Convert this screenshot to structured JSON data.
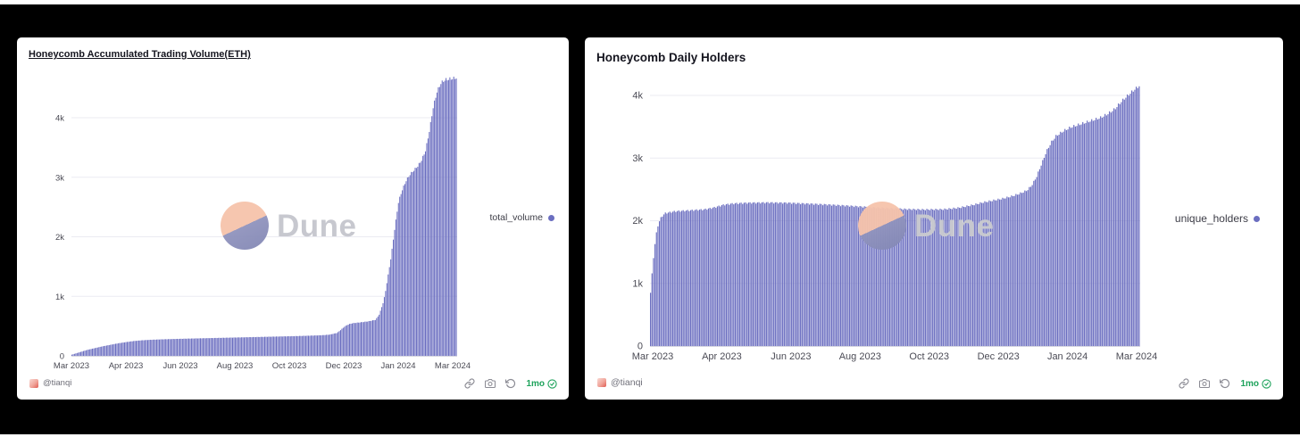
{
  "page": {
    "background": "#000000",
    "page_strip_color": "#ffffff"
  },
  "panels": [
    {
      "author": "@tianqi",
      "watermark": "Dune",
      "freshness": "1mo",
      "toolbar_icons": [
        "embed-link",
        "screenshot-camera",
        "refresh-history",
        "freshness-check"
      ]
    },
    {
      "author": "@tianqi",
      "watermark": "Dune",
      "freshness": "1mo",
      "toolbar_icons": [
        "embed-link",
        "screenshot-camera",
        "refresh-history",
        "freshness-check"
      ]
    }
  ],
  "chart_data": [
    {
      "type": "bar",
      "title": "Honeycomb Accumulated Trading Volume(ETH)",
      "xlabel": "",
      "ylabel": "",
      "x_tick_labels": [
        "Mar 2023",
        "Apr 2023",
        "Jun 2023",
        "Aug 2023",
        "Oct 2023",
        "Dec 2023",
        "Jan 2024",
        "Mar 2024"
      ],
      "y_ticks": [
        {
          "label": "0",
          "value": 0
        },
        {
          "label": "1k",
          "value": 1000
        },
        {
          "label": "2k",
          "value": 2000
        },
        {
          "label": "3k",
          "value": 3000
        },
        {
          "label": "4k",
          "value": 4000
        }
      ],
      "ylim": [
        0,
        4700
      ],
      "grid": "horizontal",
      "legend_position": "right",
      "points_format": "[position 0-1 across Mar 2023 to Mar 2024, accumulated volume in ETH]",
      "series": [
        {
          "name": "total_volume",
          "color": "#6b6ec0",
          "unit": "ETH",
          "points": [
            [
              0,
              20
            ],
            [
              0.02,
              60
            ],
            [
              0.04,
              100
            ],
            [
              0.06,
              130
            ],
            [
              0.08,
              160
            ],
            [
              0.1,
              185
            ],
            [
              0.12,
              210
            ],
            [
              0.14,
              230
            ],
            [
              0.16,
              248
            ],
            [
              0.18,
              260
            ],
            [
              0.2,
              268
            ],
            [
              0.23,
              276
            ],
            [
              0.26,
              282
            ],
            [
              0.3,
              289
            ],
            [
              0.34,
              295
            ],
            [
              0.38,
              301
            ],
            [
              0.42,
              307
            ],
            [
              0.46,
              313
            ],
            [
              0.5,
              319
            ],
            [
              0.54,
              325
            ],
            [
              0.58,
              331
            ],
            [
              0.62,
              339
            ],
            [
              0.65,
              346
            ],
            [
              0.67,
              356
            ],
            [
              0.69,
              385
            ],
            [
              0.7,
              440
            ],
            [
              0.71,
              495
            ],
            [
              0.72,
              530
            ],
            [
              0.73,
              548
            ],
            [
              0.75,
              562
            ],
            [
              0.77,
              578
            ],
            [
              0.79,
              605
            ],
            [
              0.8,
              700
            ],
            [
              0.81,
              900
            ],
            [
              0.815,
              1050
            ],
            [
              0.82,
              1250
            ],
            [
              0.83,
              1650
            ],
            [
              0.84,
              2150
            ],
            [
              0.85,
              2600
            ],
            [
              0.86,
              2800
            ],
            [
              0.87,
              2950
            ],
            [
              0.88,
              3050
            ],
            [
              0.89,
              3120
            ],
            [
              0.9,
              3190
            ],
            [
              0.91,
              3290
            ],
            [
              0.92,
              3450
            ],
            [
              0.93,
              3780
            ],
            [
              0.94,
              4180
            ],
            [
              0.95,
              4440
            ],
            [
              0.96,
              4580
            ],
            [
              0.97,
              4635
            ],
            [
              1,
              4670
            ]
          ]
        }
      ]
    },
    {
      "type": "bar",
      "title": "Honeycomb Daily Holders",
      "xlabel": "",
      "ylabel": "",
      "x_tick_labels": [
        "Mar 2023",
        "Apr 2023",
        "Jun 2023",
        "Aug 2023",
        "Oct 2023",
        "Dec 2023",
        "Jan 2024",
        "Mar 2024"
      ],
      "y_ticks": [
        {
          "label": "0",
          "value": 0
        },
        {
          "label": "1k",
          "value": 1000
        },
        {
          "label": "2k",
          "value": 2000
        },
        {
          "label": "3k",
          "value": 3000
        },
        {
          "label": "4k",
          "value": 4000
        }
      ],
      "ylim": [
        0,
        4350
      ],
      "grid": "horizontal",
      "legend_position": "right",
      "points_format": "[position 0-1 across Mar 2023 to Mar 2024, unique holders count]",
      "series": [
        {
          "name": "unique_holders",
          "color": "#6b6ec0",
          "unit": "holders",
          "points": [
            [
              0,
              850
            ],
            [
              0.004,
              1250
            ],
            [
              0.008,
              1560
            ],
            [
              0.012,
              1800
            ],
            [
              0.016,
              1950
            ],
            [
              0.022,
              2060
            ],
            [
              0.03,
              2120
            ],
            [
              0.05,
              2150
            ],
            [
              0.08,
              2165
            ],
            [
              0.11,
              2180
            ],
            [
              0.13,
              2210
            ],
            [
              0.15,
              2255
            ],
            [
              0.17,
              2275
            ],
            [
              0.2,
              2285
            ],
            [
              0.24,
              2290
            ],
            [
              0.28,
              2285
            ],
            [
              0.32,
              2272
            ],
            [
              0.36,
              2258
            ],
            [
              0.4,
              2240
            ],
            [
              0.44,
              2220
            ],
            [
              0.48,
              2200
            ],
            [
              0.52,
              2185
            ],
            [
              0.56,
              2178
            ],
            [
              0.6,
              2182
            ],
            [
              0.63,
              2205
            ],
            [
              0.66,
              2252
            ],
            [
              0.68,
              2292
            ],
            [
              0.7,
              2322
            ],
            [
              0.72,
              2352
            ],
            [
              0.74,
              2392
            ],
            [
              0.755,
              2432
            ],
            [
              0.77,
              2482
            ],
            [
              0.78,
              2562
            ],
            [
              0.79,
              2702
            ],
            [
              0.8,
              2902
            ],
            [
              0.81,
              3102
            ],
            [
              0.82,
              3252
            ],
            [
              0.83,
              3352
            ],
            [
              0.845,
              3432
            ],
            [
              0.86,
              3492
            ],
            [
              0.88,
              3542
            ],
            [
              0.9,
              3592
            ],
            [
              0.92,
              3642
            ],
            [
              0.935,
              3702
            ],
            [
              0.95,
              3782
            ],
            [
              0.96,
              3872
            ],
            [
              0.97,
              3952
            ],
            [
              0.98,
              4022
            ],
            [
              0.99,
              4092
            ],
            [
              1,
              4152
            ]
          ]
        }
      ]
    }
  ]
}
